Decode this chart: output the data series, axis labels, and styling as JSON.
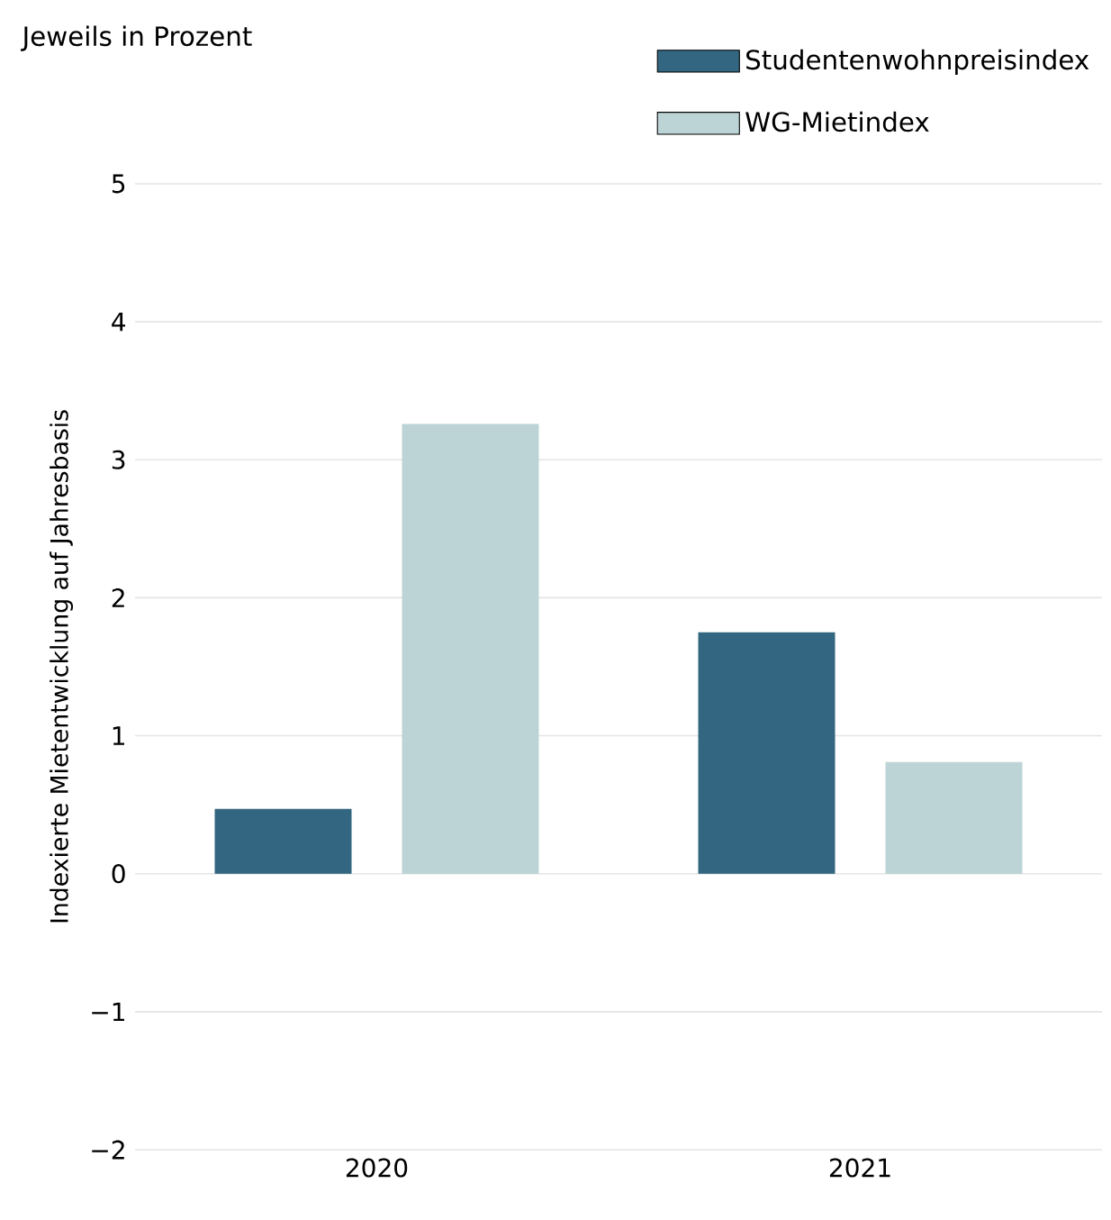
{
  "chart_data": {
    "type": "bar",
    "subtitle": "Jeweils in Prozent",
    "ylabel": "Indexierte Mietentwicklung auf Jahresbasis",
    "categories": [
      "2020",
      "2021"
    ],
    "series": [
      {
        "name": "Studentenwohnpreisindex",
        "color": "#336680",
        "values": [
          0.47,
          1.75
        ]
      },
      {
        "name": "WG-Mietindex",
        "color": "#bcd4d6",
        "values": [
          3.26,
          0.81
        ]
      }
    ],
    "ylim": [
      -2,
      5
    ],
    "yticks": [
      {
        "value": -2,
        "label": "−2"
      },
      {
        "value": -1,
        "label": "−1"
      },
      0,
      1,
      2,
      3,
      4,
      5
    ],
    "grid": "y",
    "legend": "top right"
  }
}
